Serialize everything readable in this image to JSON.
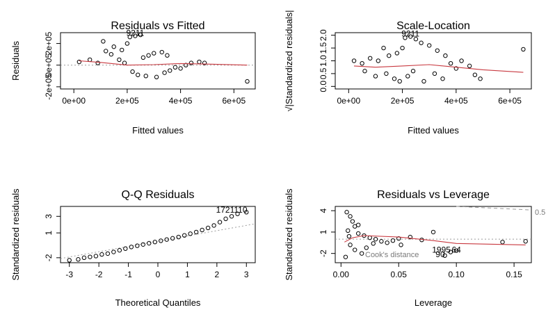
{
  "chart_data": [
    {
      "id": "rvf",
      "type": "scatter",
      "title": "Residuals vs Fitted",
      "xlabel": "Fitted values",
      "ylabel": "Residuals",
      "xlim": [
        -50000,
        680000
      ],
      "ylim": [
        -220000,
        300000
      ],
      "xticks": [
        0,
        200000,
        400000,
        600000
      ],
      "xtick_labels": [
        "0e+00",
        "2e+05",
        "4e+05",
        "6e+05"
      ],
      "yticks": [
        -200000,
        0,
        200000
      ],
      "ytick_labels": [
        "-2e+05",
        "0e+05",
        "2e+05"
      ],
      "ref_line": {
        "y": 0
      },
      "smooth": {
        "x": [
          20000,
          100000,
          200000,
          300000,
          400000,
          500000,
          650000
        ],
        "y": [
          40000,
          25000,
          0,
          5000,
          15000,
          10000,
          0
        ]
      },
      "points": [
        [
          20000,
          30000
        ],
        [
          60000,
          50000
        ],
        [
          90000,
          20000
        ],
        [
          650000,
          -150000
        ],
        [
          490000,
          20000
        ],
        [
          470000,
          30000
        ],
        [
          420000,
          0
        ],
        [
          380000,
          -20000
        ],
        [
          350000,
          90000
        ],
        [
          330000,
          120000
        ],
        [
          300000,
          110000
        ],
        [
          280000,
          90000
        ],
        [
          260000,
          70000
        ],
        [
          250000,
          280000
        ],
        [
          230000,
          270000
        ],
        [
          210000,
          260000
        ],
        [
          200000,
          200000
        ],
        [
          180000,
          140000
        ],
        [
          150000,
          170000
        ],
        [
          120000,
          130000
        ],
        [
          110000,
          220000
        ],
        [
          140000,
          100000
        ],
        [
          170000,
          50000
        ],
        [
          190000,
          20000
        ],
        [
          220000,
          -60000
        ],
        [
          240000,
          -90000
        ],
        [
          270000,
          -100000
        ],
        [
          310000,
          -110000
        ],
        [
          340000,
          -70000
        ],
        [
          360000,
          -50000
        ],
        [
          400000,
          -30000
        ],
        [
          440000,
          20000
        ]
      ],
      "annotations": [
        {
          "text": "9211",
          "x": 230000,
          "y": 270000
        }
      ]
    },
    {
      "id": "sl",
      "type": "scatter",
      "title": "Scale-Location",
      "xlabel": "Fitted values",
      "ylabel": "√|Standardized residuals|",
      "xlim": [
        -50000,
        680000
      ],
      "ylim": [
        -0.1,
        2.1
      ],
      "xticks": [
        0,
        200000,
        400000,
        600000
      ],
      "xtick_labels": [
        "0e+00",
        "2e+05",
        "4e+05",
        "6e+05"
      ],
      "yticks": [
        0,
        0.5,
        1,
        1.5,
        2
      ],
      "ytick_labels": [
        "0.0",
        "0.5",
        "1.0",
        "1.5",
        "2.0"
      ],
      "smooth": {
        "x": [
          20000,
          100000,
          200000,
          300000,
          400000,
          500000,
          650000
        ],
        "y": [
          0.8,
          0.75,
          0.8,
          0.85,
          0.75,
          0.65,
          0.55
        ]
      },
      "points": [
        [
          20000,
          1.0
        ],
        [
          50000,
          0.9
        ],
        [
          80000,
          1.1
        ],
        [
          650000,
          1.45
        ],
        [
          490000,
          0.3
        ],
        [
          470000,
          0.45
        ],
        [
          450000,
          0.8
        ],
        [
          400000,
          0.7
        ],
        [
          360000,
          1.2
        ],
        [
          330000,
          1.4
        ],
        [
          300000,
          1.6
        ],
        [
          270000,
          1.7
        ],
        [
          250000,
          1.85
        ],
        [
          230000,
          1.95
        ],
        [
          210000,
          1.9
        ],
        [
          200000,
          1.5
        ],
        [
          180000,
          1.3
        ],
        [
          150000,
          1.2
        ],
        [
          130000,
          1.5
        ],
        [
          110000,
          1.0
        ],
        [
          140000,
          0.5
        ],
        [
          170000,
          0.3
        ],
        [
          190000,
          0.2
        ],
        [
          220000,
          0.4
        ],
        [
          240000,
          0.6
        ],
        [
          280000,
          0.2
        ],
        [
          320000,
          0.5
        ],
        [
          350000,
          0.3
        ],
        [
          380000,
          0.9
        ],
        [
          420000,
          1.0
        ],
        [
          100000,
          0.4
        ],
        [
          60000,
          0.6
        ]
      ],
      "annotations": [
        {
          "text": "9211",
          "x": 230000,
          "y": 1.95
        }
      ]
    },
    {
      "id": "qq",
      "type": "scatter",
      "title": "Q-Q Residuals",
      "xlabel": "Theoretical Quantiles",
      "ylabel": "Standardized residuals",
      "xlim": [
        -3.3,
        3.3
      ],
      "ylim": [
        -2.6,
        4.2
      ],
      "xticks": [
        -3,
        -2,
        -1,
        0,
        1,
        2,
        3
      ],
      "xtick_labels": [
        "-3",
        "-2",
        "-1",
        "0",
        "1",
        "2",
        "3"
      ],
      "yticks": [
        -2,
        1,
        3
      ],
      "ytick_labels": [
        "-2",
        "1",
        "3"
      ],
      "ref_line": {
        "x": [
          -3.3,
          3.3
        ],
        "y": [
          -2.1,
          2.1
        ]
      },
      "points": [
        [
          -3.0,
          -2.3
        ],
        [
          -2.7,
          -2.2
        ],
        [
          -2.5,
          -2.0
        ],
        [
          -2.3,
          -1.9
        ],
        [
          -2.1,
          -1.8
        ],
        [
          -1.9,
          -1.6
        ],
        [
          -1.7,
          -1.5
        ],
        [
          -1.5,
          -1.3
        ],
        [
          -1.3,
          -1.1
        ],
        [
          -1.1,
          -0.9
        ],
        [
          -0.9,
          -0.7
        ],
        [
          -0.7,
          -0.55
        ],
        [
          -0.5,
          -0.4
        ],
        [
          -0.3,
          -0.25
        ],
        [
          -0.1,
          -0.1
        ],
        [
          0.1,
          0.05
        ],
        [
          0.3,
          0.2
        ],
        [
          0.5,
          0.35
        ],
        [
          0.7,
          0.5
        ],
        [
          0.9,
          0.7
        ],
        [
          1.1,
          0.9
        ],
        [
          1.3,
          1.1
        ],
        [
          1.5,
          1.35
        ],
        [
          1.7,
          1.6
        ],
        [
          1.9,
          1.9
        ],
        [
          2.1,
          2.3
        ],
        [
          2.3,
          2.7
        ],
        [
          2.5,
          3.0
        ],
        [
          2.7,
          3.3
        ],
        [
          3.0,
          3.5
        ]
      ],
      "annotations": [
        {
          "text": "1721110",
          "x": 2.5,
          "y": 3.45
        }
      ]
    },
    {
      "id": "rvl",
      "type": "scatter",
      "title": "Residuals vs Leverage",
      "xlabel": "Leverage",
      "ylabel": "Standardized residuals",
      "xlim": [
        -0.005,
        0.165
      ],
      "ylim": [
        -3.3,
        4.6
      ],
      "xticks": [
        0,
        0.05,
        0.1,
        0.15
      ],
      "xtick_labels": [
        "0.00",
        "0.05",
        "0.10",
        "0.15"
      ],
      "yticks": [
        -2,
        1,
        4
      ],
      "ytick_labels": [
        "-2",
        "1",
        "4"
      ],
      "ref_line": {
        "y": 0
      },
      "smooth": {
        "x": [
          0.003,
          0.01,
          0.02,
          0.05,
          0.08,
          0.1,
          0.16
        ],
        "y": [
          -0.4,
          0.2,
          0.5,
          0.3,
          -0.2,
          -0.6,
          -0.8
        ]
      },
      "cook_line": {
        "x": [
          0.1,
          0.16
        ],
        "y": [
          5.1,
          4.1
        ]
      },
      "points": [
        [
          0.005,
          3.8
        ],
        [
          0.008,
          3.2
        ],
        [
          0.01,
          2.5
        ],
        [
          0.012,
          1.8
        ],
        [
          0.006,
          1.2
        ],
        [
          0.015,
          0.8
        ],
        [
          0.02,
          0.5
        ],
        [
          0.025,
          0.2
        ],
        [
          0.03,
          0.0
        ],
        [
          0.035,
          -0.3
        ],
        [
          0.04,
          -0.5
        ],
        [
          0.045,
          -0.2
        ],
        [
          0.05,
          0.1
        ],
        [
          0.008,
          -0.8
        ],
        [
          0.012,
          -1.5
        ],
        [
          0.018,
          -2.0
        ],
        [
          0.022,
          -1.2
        ],
        [
          0.028,
          -0.6
        ],
        [
          0.004,
          -2.5
        ],
        [
          0.007,
          0.4
        ],
        [
          0.052,
          -0.8
        ],
        [
          0.08,
          1.0
        ],
        [
          0.09,
          -2.3
        ],
        [
          0.095,
          -1.8
        ],
        [
          0.1,
          -1.6
        ],
        [
          0.14,
          -0.4
        ],
        [
          0.16,
          -0.3
        ],
        [
          0.06,
          0.3
        ],
        [
          0.07,
          -0.1
        ],
        [
          0.015,
          2.0
        ]
      ],
      "annotations": [
        {
          "text": "1995",
          "x": 0.087,
          "y": -1.9
        },
        {
          "text": "64",
          "x": 0.1,
          "y": -1.9
        },
        {
          "text": "90",
          "x": 0.086,
          "y": -2.5
        }
      ],
      "cook_label": "Cook's distance",
      "cook_value": "0.5"
    }
  ]
}
